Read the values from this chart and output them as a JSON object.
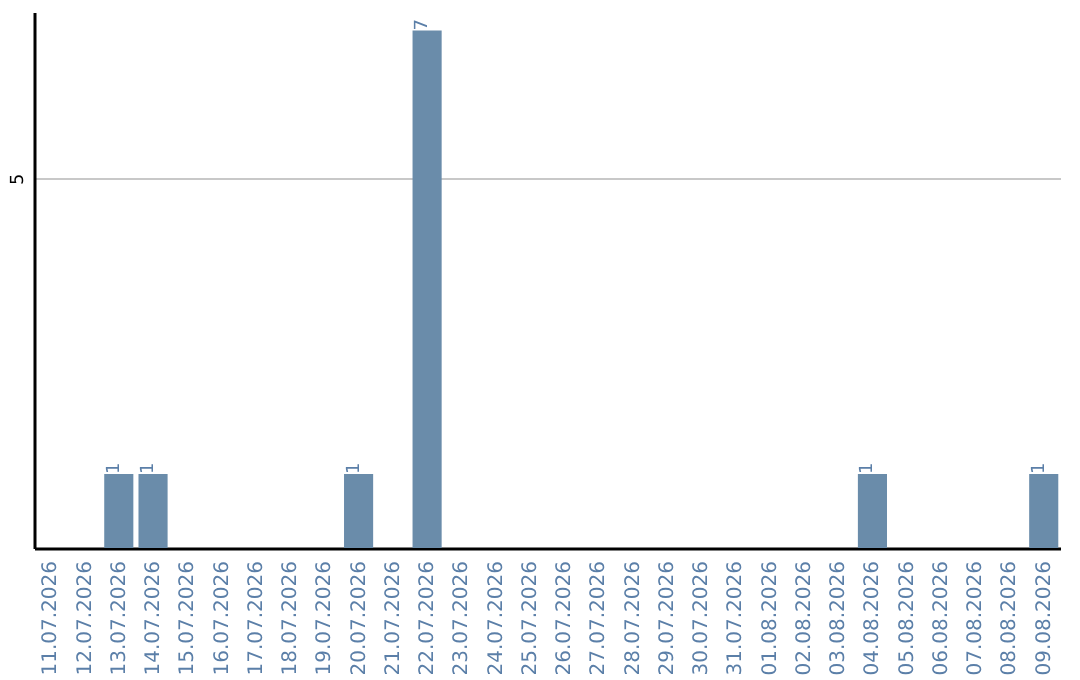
{
  "chart_data": {
    "type": "bar",
    "categories": [
      "11.07.2026",
      "12.07.2026",
      "13.07.2026",
      "14.07.2026",
      "15.07.2026",
      "16.07.2026",
      "17.07.2026",
      "18.07.2026",
      "19.07.2026",
      "20.07.2026",
      "21.07.2026",
      "22.07.2026",
      "23.07.2026",
      "24.07.2026",
      "25.07.2026",
      "26.07.2026",
      "27.07.2026",
      "28.07.2026",
      "29.07.2026",
      "30.07.2026",
      "31.07.2026",
      "01.08.2026",
      "02.08.2026",
      "03.08.2026",
      "04.08.2026",
      "05.08.2026",
      "06.08.2026",
      "07.08.2026",
      "08.08.2026",
      "09.08.2026"
    ],
    "values": [
      0,
      0,
      1,
      1,
      0,
      0,
      0,
      0,
      0,
      1,
      0,
      7,
      0,
      0,
      0,
      0,
      0,
      0,
      0,
      0,
      0,
      0,
      0,
      0,
      1,
      0,
      0,
      0,
      0,
      1
    ],
    "value_labels": [
      null,
      null,
      "1",
      "1",
      null,
      null,
      null,
      null,
      null,
      "1",
      null,
      "7",
      null,
      null,
      null,
      null,
      null,
      null,
      null,
      null,
      null,
      null,
      null,
      null,
      "1",
      null,
      null,
      null,
      null,
      "1"
    ],
    "color": "#6a8caa",
    "ylim": [
      0,
      7.25
    ],
    "yticks": [
      5
    ],
    "grid": "y"
  }
}
